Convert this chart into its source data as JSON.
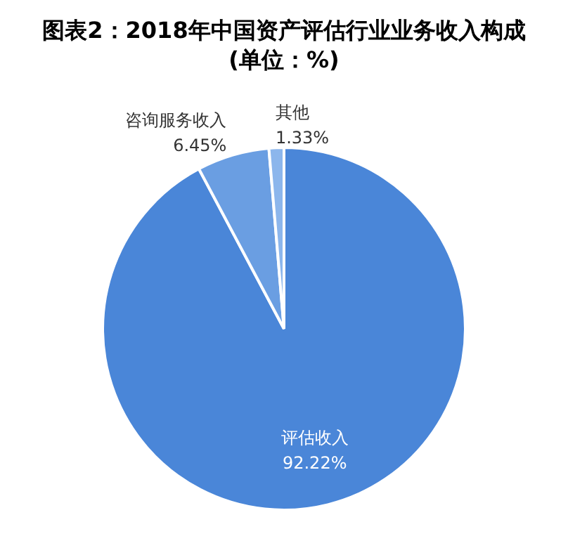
{
  "chart_data": {
    "type": "pie",
    "title": "图表2：2018年中国资产评估行业业务收入构成(单位：%)",
    "categories": [
      "评估收入",
      "咨询服务收入",
      "其他"
    ],
    "values": [
      92.22,
      6.45,
      1.33
    ],
    "colors": [
      "#4a86d8",
      "#6a9ee2",
      "#8cb6ec"
    ],
    "value_labels": [
      "92.22%",
      "6.45%",
      "1.33%"
    ],
    "legend": false
  }
}
